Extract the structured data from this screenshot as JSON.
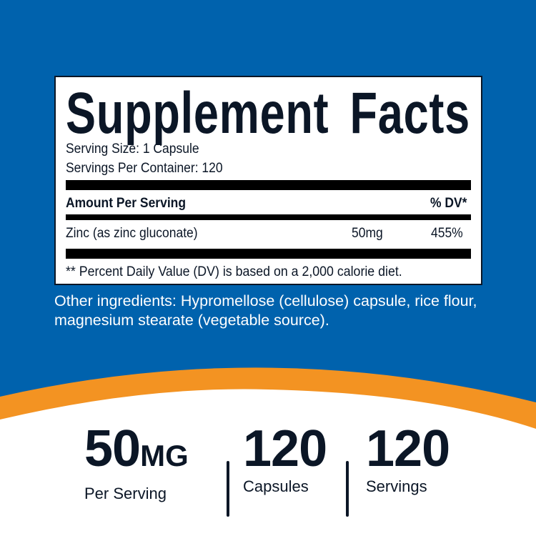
{
  "colors": {
    "background_blue": "#0062ad",
    "accent_orange": "#f39322",
    "text_dark": "#0b1626"
  },
  "label": {
    "title": "Supplement Facts",
    "serving_size": "Serving Size: 1 Capsule",
    "servings_per_container": "Servings Per Container: 120",
    "header_amount": "Amount Per Serving",
    "header_dv": "% DV*",
    "rows": [
      {
        "name": "Zinc (as zinc gluconate)",
        "amount": "50mg",
        "dv": "455%"
      }
    ],
    "footnote": "** Percent Daily Value (DV) is based on a 2,000 calorie diet."
  },
  "other_ingredients": "Other ingredients: Hypromellose (cellulose) capsule, rice flour, magnesium stearate (vegetable source).",
  "stats": [
    {
      "value": "50",
      "unit": "MG",
      "caption": "Per Serving"
    },
    {
      "value": "120",
      "unit": "",
      "caption": "Capsules"
    },
    {
      "value": "120",
      "unit": "",
      "caption": "Servings"
    }
  ]
}
